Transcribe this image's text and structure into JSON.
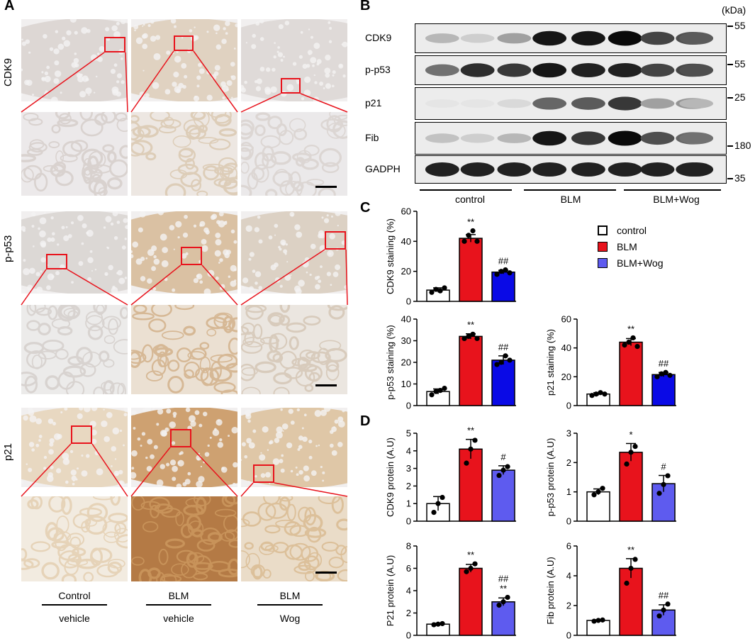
{
  "panels": {
    "a": "A",
    "b": "B",
    "c": "C",
    "d": "D"
  },
  "panelA": {
    "row_labels": [
      "CDK9",
      "p-p53",
      "p21"
    ],
    "conditions": [
      {
        "top": "Control",
        "bottom": "vehicle"
      },
      {
        "top": "BLM",
        "bottom": "vehicle"
      },
      {
        "top": "BLM",
        "bottom": "Wog"
      }
    ]
  },
  "panelB": {
    "kda_label": "(kDa)",
    "blots": [
      {
        "label": "CDK9",
        "marker": "55",
        "intensities": [
          0.25,
          0.15,
          0.35,
          0.95,
          0.95,
          1.0,
          0.75,
          0.7,
          0.65
        ]
      },
      {
        "label": "p-p53",
        "marker": "55",
        "intensities": [
          0.55,
          0.85,
          0.8,
          0.95,
          0.9,
          0.9,
          0.75,
          0.75,
          0.7
        ]
      },
      {
        "label": "p21",
        "marker": "25",
        "intensities": [
          0.05,
          0.05,
          0.1,
          0.6,
          0.65,
          0.8,
          0.35,
          0.4,
          0.25
        ]
      },
      {
        "label": "Fib",
        "marker": "180",
        "intensities": [
          0.2,
          0.15,
          0.25,
          0.95,
          0.8,
          1.0,
          0.7,
          0.6,
          0.55
        ]
      },
      {
        "label": "GADPH",
        "marker": "35",
        "intensities": [
          0.9,
          0.9,
          0.9,
          0.9,
          0.9,
          0.9,
          0.9,
          0.9,
          0.9
        ]
      }
    ],
    "groups": [
      "control",
      "BLM",
      "BLM+Wog"
    ]
  },
  "legend": [
    {
      "label": "control",
      "color": "#ffffff"
    },
    {
      "label": "BLM",
      "color": "#e8131c"
    },
    {
      "label": "BLM+Wog",
      "color": "#5e5bef"
    }
  ],
  "chart_data": [
    {
      "type": "bar",
      "panel": "C",
      "ylabel": "CDK9 staining (%)",
      "ylim": [
        0,
        60
      ],
      "yticks": [
        0,
        20,
        40,
        60
      ],
      "categories": [
        "control",
        "BLM",
        "BLM+Wog"
      ],
      "values": [
        7.5,
        42,
        19.5
      ],
      "errors": [
        1.5,
        2.5,
        1.2
      ],
      "points": [
        [
          6,
          8,
          7,
          9
        ],
        [
          40,
          44,
          47,
          40
        ],
        [
          18,
          20,
          21,
          19
        ]
      ],
      "annotations": [
        "",
        "**",
        "##"
      ],
      "colors": [
        "#ffffff",
        "#e8131c",
        "#0a0ae6"
      ]
    },
    {
      "type": "bar",
      "panel": "C",
      "ylabel": "p-p53 staining (%)",
      "ylim": [
        0,
        40
      ],
      "yticks": [
        0,
        10,
        20,
        30,
        40
      ],
      "categories": [
        "control",
        "BLM",
        "BLM+Wog"
      ],
      "values": [
        6.5,
        32,
        21
      ],
      "errors": [
        1.2,
        1.2,
        2
      ],
      "points": [
        [
          5,
          6.5,
          7,
          8
        ],
        [
          31,
          32,
          33,
          31
        ],
        [
          19,
          20,
          23,
          21
        ]
      ],
      "annotations": [
        "",
        "**",
        "##"
      ],
      "colors": [
        "#ffffff",
        "#e8131c",
        "#0a0ae6"
      ]
    },
    {
      "type": "bar",
      "panel": "C",
      "ylabel": "p21 staining (%)",
      "ylim": [
        0,
        60
      ],
      "yticks": [
        0,
        20,
        40,
        60
      ],
      "categories": [
        "control",
        "BLM",
        "BLM+Wog"
      ],
      "values": [
        8,
        44,
        21.5
      ],
      "errors": [
        1,
        2.5,
        1.5
      ],
      "points": [
        [
          7,
          8,
          9,
          8
        ],
        [
          42,
          44,
          47,
          41
        ],
        [
          20,
          22,
          23,
          21
        ]
      ],
      "annotations": [
        "",
        "**",
        "##"
      ],
      "colors": [
        "#ffffff",
        "#e8131c",
        "#0a0ae6"
      ]
    },
    {
      "type": "bar",
      "panel": "D",
      "ylabel": "CDK9 protein (A.U)",
      "ylim": [
        0,
        5
      ],
      "yticks": [
        0,
        1,
        2,
        3,
        4,
        5
      ],
      "categories": [
        "control",
        "BLM",
        "BLM+Wog"
      ],
      "values": [
        1.0,
        4.1,
        2.9
      ],
      "errors": [
        0.4,
        0.55,
        0.25
      ],
      "points": [
        [
          0.5,
          1.0,
          1.35
        ],
        [
          3.3,
          4.1,
          4.6
        ],
        [
          2.6,
          2.9,
          3.1
        ]
      ],
      "annotations": [
        "",
        "**",
        "#"
      ],
      "colors": [
        "#ffffff",
        "#e8131c",
        "#5e5bef"
      ]
    },
    {
      "type": "bar",
      "panel": "D",
      "ylabel": "p-p53 protein (A.U)",
      "ylim": [
        0,
        3
      ],
      "yticks": [
        0,
        1,
        2,
        3
      ],
      "categories": [
        "control",
        "BLM",
        "BLM+Wog"
      ],
      "values": [
        1.0,
        2.35,
        1.28
      ],
      "errors": [
        0.1,
        0.3,
        0.28
      ],
      "points": [
        [
          0.9,
          1.0,
          1.12
        ],
        [
          1.95,
          2.35,
          2.55
        ],
        [
          0.95,
          1.25,
          1.55
        ]
      ],
      "annotations": [
        "",
        "*",
        "#"
      ],
      "colors": [
        "#ffffff",
        "#e8131c",
        "#5e5bef"
      ]
    },
    {
      "type": "bar",
      "panel": "D",
      "ylabel": "P21 protein (A.U)",
      "ylim": [
        0,
        8
      ],
      "yticks": [
        0,
        2,
        4,
        6,
        8
      ],
      "categories": [
        "control",
        "BLM",
        "BLM+Wog"
      ],
      "values": [
        1.0,
        6.0,
        3.0
      ],
      "errors": [
        0.08,
        0.35,
        0.35
      ],
      "points": [
        [
          0.95,
          1.0,
          1.05
        ],
        [
          5.7,
          6.0,
          6.4
        ],
        [
          2.7,
          3.0,
          3.4
        ]
      ],
      "annotations": [
        "",
        "**",
        "##\n**"
      ],
      "colors": [
        "#ffffff",
        "#e8131c",
        "#5e5bef"
      ]
    },
    {
      "type": "bar",
      "panel": "D",
      "ylabel": "Fib protein (A.U)",
      "ylim": [
        0,
        6
      ],
      "yticks": [
        0,
        2,
        4,
        6
      ],
      "categories": [
        "control",
        "BLM",
        "BLM+Wog"
      ],
      "values": [
        1.0,
        4.5,
        1.7
      ],
      "errors": [
        0.05,
        0.65,
        0.35
      ],
      "points": [
        [
          0.95,
          1.0,
          1.03
        ],
        [
          3.5,
          4.5,
          5.1
        ],
        [
          1.3,
          1.7,
          2.1
        ]
      ],
      "annotations": [
        "",
        "**",
        "##"
      ],
      "colors": [
        "#ffffff",
        "#e8131c",
        "#5e5bef"
      ]
    }
  ]
}
